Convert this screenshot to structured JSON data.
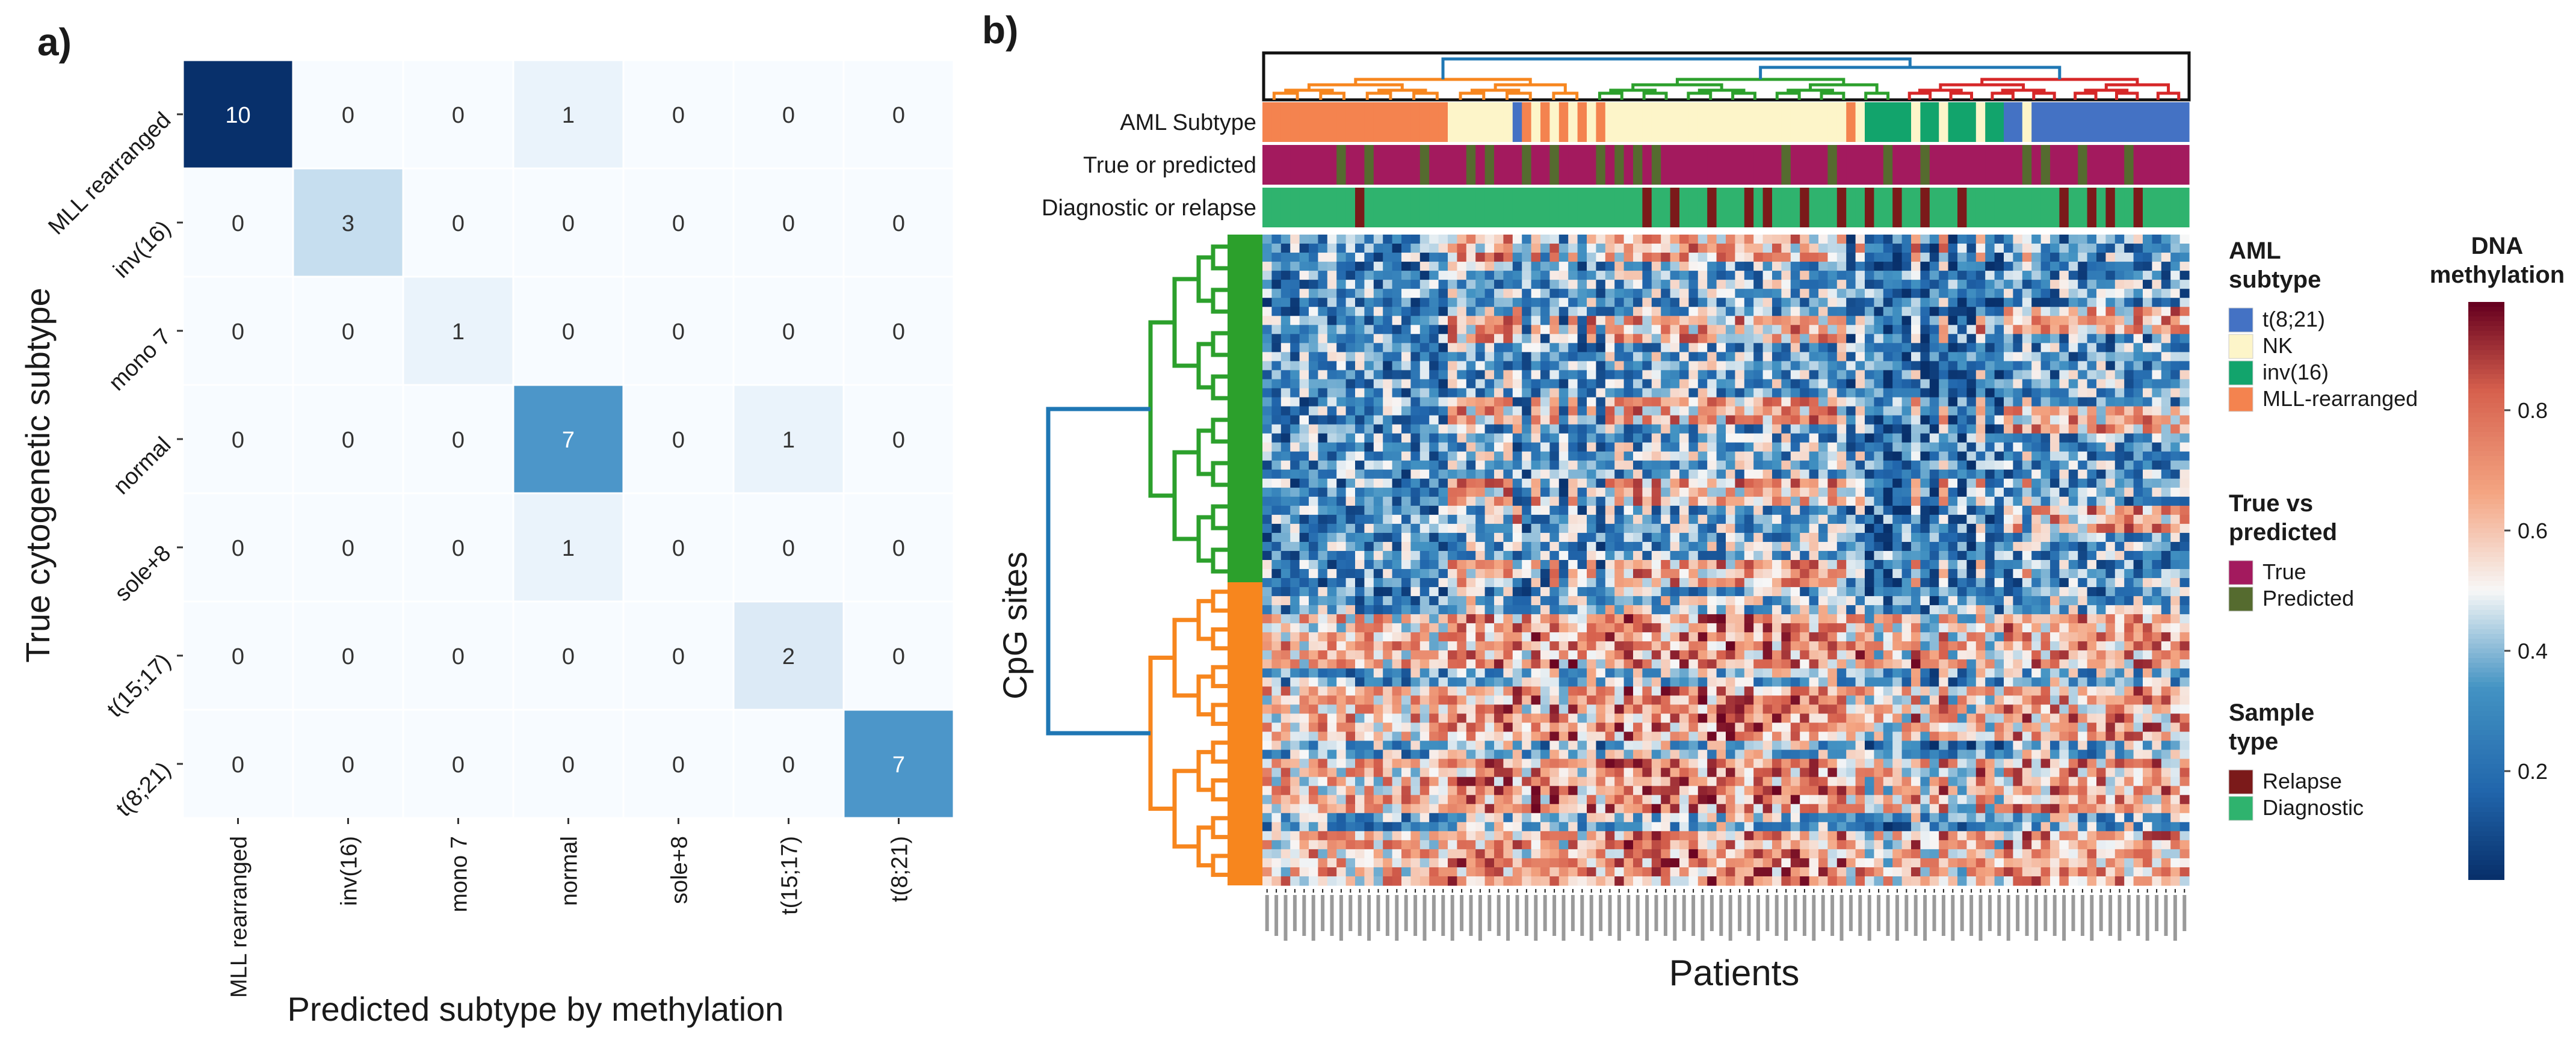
{
  "panel_a_label": "a)",
  "panel_b_label": "b)",
  "chart_data": [
    {
      "type": "heatmap",
      "title": "",
      "xlabel": "Predicted subtype by methylation",
      "ylabel": "True cytogenetic subtype",
      "x_categories": [
        "MLL rearranged",
        "inv(16)",
        "mono 7",
        "normal",
        "sole+8",
        "t(15;17)",
        "t(8;21)"
      ],
      "y_categories": [
        "MLL rearranged",
        "inv(16)",
        "mono 7",
        "normal",
        "sole+8",
        "t(15;17)",
        "t(8;21)"
      ],
      "values": [
        [
          10,
          0,
          0,
          1,
          0,
          0,
          0
        ],
        [
          0,
          3,
          0,
          0,
          0,
          0,
          0
        ],
        [
          0,
          0,
          1,
          0,
          0,
          0,
          0
        ],
        [
          0,
          0,
          0,
          7,
          0,
          1,
          0
        ],
        [
          0,
          0,
          0,
          1,
          0,
          0,
          0
        ],
        [
          0,
          0,
          0,
          0,
          0,
          2,
          0
        ],
        [
          0,
          0,
          0,
          0,
          0,
          0,
          7
        ]
      ],
      "vmin": 0,
      "vmax": 10
    },
    {
      "type": "heatmap",
      "xlabel": "Patients",
      "ylabel": "CpG sites",
      "row_annotations": [
        "AML Subtype",
        "True or predicted",
        "Diagnostic or relapse"
      ],
      "legend_groups": [
        {
          "title_lines": [
            "AML",
            "subtype"
          ],
          "items": [
            {
              "label": "t(8;21)",
              "color": "#4472c4"
            },
            {
              "label": "NK",
              "color": "#fdf5c9"
            },
            {
              "label": "inv(16)",
              "color": "#12a46c"
            },
            {
              "label": "MLL-rearranged",
              "color": "#f4834f"
            }
          ]
        },
        {
          "title_lines": [
            "True vs",
            "predicted"
          ],
          "items": [
            {
              "label": "True",
              "color": "#a31a5e"
            },
            {
              "label": "Predicted",
              "color": "#556b2f"
            }
          ]
        },
        {
          "title_lines": [
            "Sample",
            "type"
          ],
          "items": [
            {
              "label": "Relapse",
              "color": "#7b1a1a"
            },
            {
              "label": "Diagnostic",
              "color": "#2fb36e"
            }
          ]
        }
      ],
      "colorbar": {
        "title_lines": [
          "DNA",
          "methylation"
        ],
        "ticks": [
          0.2,
          0.4,
          0.6,
          0.8
        ],
        "range": [
          0.02,
          0.98
        ]
      }
    }
  ]
}
